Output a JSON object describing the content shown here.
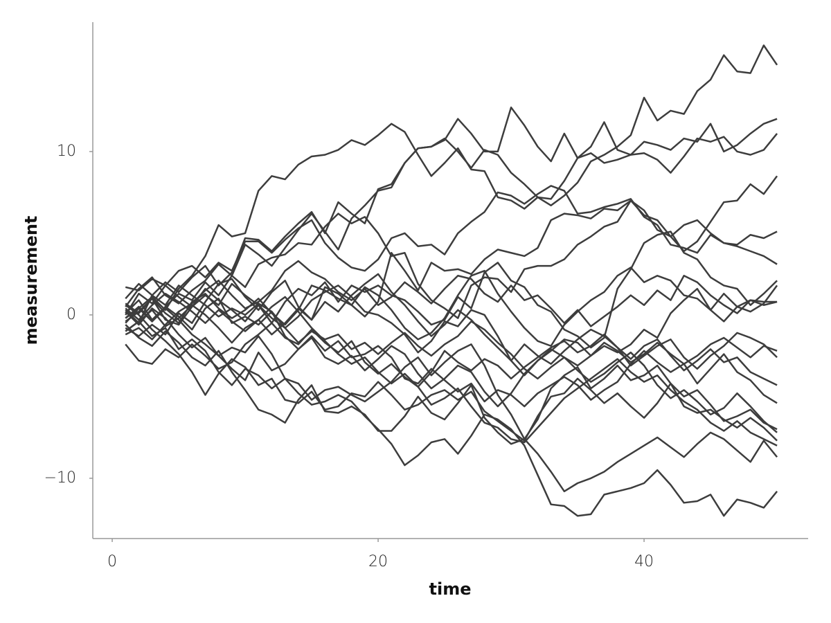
{
  "chart_data": {
    "type": "line",
    "x_label": "time",
    "y_label": "measurement",
    "color": "#3d3d3d",
    "xlim": [
      -1.46,
      52.34
    ],
    "ylim": [
      -13.69,
      17.92
    ],
    "xticks": [
      0,
      20,
      40
    ],
    "yticks": [
      {
        "value": -10,
        "label": "−10"
      },
      0,
      10
    ],
    "x": [
      1,
      2,
      3,
      4,
      5,
      6,
      7,
      8,
      9,
      10,
      11,
      12,
      13,
      14,
      15,
      16,
      17,
      18,
      19,
      20,
      21,
      22,
      23,
      24,
      25,
      26,
      27,
      28,
      29,
      30,
      31,
      32,
      33,
      34,
      35,
      36,
      37,
      38,
      39,
      40,
      41,
      42,
      43,
      44,
      45,
      46,
      47,
      48,
      49,
      50
    ],
    "series": [
      {
        "values": [
          0.3,
          -0.5,
          1.2,
          2.0,
          1.4,
          2.3,
          3.0,
          1.8,
          2.6,
          4.7,
          4.6,
          3.9,
          4.8,
          5.6,
          6.3,
          5.0,
          6.9,
          6.2,
          5.6,
          7.7,
          8.0,
          9.3,
          10.2,
          10.3,
          10.8,
          10.0,
          9.0,
          10.1,
          9.8,
          8.7,
          8.0,
          7.2,
          6.7,
          7.3,
          8.1,
          9.4,
          9.8,
          10.3,
          11.0,
          13.3,
          11.9,
          12.5,
          12.3,
          13.7,
          14.4,
          15.9,
          14.9,
          14.8,
          16.5,
          15.3
        ]
      },
      {
        "values": [
          -0.5,
          0.4,
          1.1,
          0.3,
          1.6,
          2.4,
          3.6,
          5.5,
          4.8,
          5.0,
          7.6,
          8.5,
          8.3,
          9.2,
          9.7,
          9.8,
          10.1,
          10.7,
          10.4,
          11.0,
          11.7,
          11.2,
          9.8,
          8.5,
          9.3,
          10.2,
          8.9,
          8.8,
          7.2,
          7.0,
          6.5,
          7.2,
          7.1,
          8.2,
          9.6,
          9.9,
          9.3,
          9.5,
          9.8,
          10.6,
          10.4,
          10.1,
          10.8,
          10.6,
          11.7,
          10.0,
          10.4,
          11.1,
          11.7,
          12.0
        ]
      },
      {
        "values": [
          0.1,
          0.9,
          -0.3,
          0.5,
          1.3,
          0.9,
          2.0,
          1.2,
          2.4,
          4.3,
          3.7,
          3.0,
          4.1,
          5.2,
          6.2,
          5.1,
          4.0,
          5.9,
          6.7,
          7.6,
          7.8,
          9.3,
          10.2,
          10.3,
          10.7,
          12.0,
          11.1,
          10.0,
          10.0,
          12.7,
          11.6,
          10.3,
          9.4,
          11.1,
          9.6,
          10.3,
          11.8,
          10.1,
          9.8,
          9.9,
          9.5,
          8.7,
          9.7,
          10.8,
          10.6,
          10.9,
          10.0,
          9.8,
          10.1,
          11.1
        ]
      },
      {
        "values": [
          -0.8,
          -1.3,
          -0.6,
          -1.2,
          0.1,
          -0.5,
          0.8,
          1.9,
          2.2,
          1.1,
          0.3,
          1.4,
          2.1,
          0.5,
          -0.3,
          1.7,
          1.3,
          0.6,
          -0.1,
          0.8,
          3.8,
          2.7,
          1.5,
          3.2,
          2.7,
          2.8,
          2.5,
          3.4,
          4.0,
          3.8,
          3.6,
          4.1,
          5.8,
          6.2,
          6.1,
          5.9,
          6.5,
          6.4,
          7.0,
          6.1,
          5.8,
          4.8,
          3.9,
          4.5,
          5.7,
          6.9,
          7.0,
          8.0,
          7.4,
          8.5
        ]
      },
      {
        "values": [
          1.7,
          1.5,
          2.2,
          1.8,
          2.7,
          3.0,
          2.3,
          3.2,
          2.7,
          4.5,
          4.5,
          3.8,
          4.6,
          5.3,
          5.8,
          4.4,
          3.5,
          2.9,
          2.7,
          3.4,
          4.7,
          5.0,
          4.2,
          4.3,
          3.7,
          5.0,
          5.7,
          6.3,
          7.5,
          7.3,
          6.8,
          7.4,
          7.9,
          7.6,
          6.2,
          6.3,
          6.6,
          6.8,
          7.1,
          6.0,
          5.5,
          4.3,
          4.1,
          3.8,
          4.9,
          4.4,
          4.3,
          4.9,
          4.7,
          5.1
        ]
      },
      {
        "values": [
          0.5,
          1.6,
          2.3,
          1.2,
          0.7,
          1.5,
          2.1,
          3.1,
          2.4,
          1.7,
          3.1,
          3.5,
          3.7,
          4.4,
          4.3,
          5.4,
          6.2,
          5.6,
          6.0,
          5.0,
          3.6,
          3.8,
          1.9,
          0.9,
          0.4,
          -0.2,
          1.8,
          2.3,
          2.2,
          1.4,
          2.8,
          3.0,
          3.0,
          3.4,
          4.3,
          4.8,
          5.4,
          5.7,
          7.0,
          6.4,
          5.2,
          4.8,
          5.5,
          5.8,
          5.0,
          4.4,
          4.2,
          3.9,
          3.6,
          3.1
        ]
      },
      {
        "values": [
          0.7,
          0.1,
          1.0,
          -0.3,
          -0.6,
          0.5,
          1.2,
          0.6,
          1.9,
          1.2,
          0.6,
          -0.5,
          0.8,
          1.6,
          1.2,
          2.0,
          0.8,
          1.8,
          1.4,
          1.8,
          1.2,
          0.9,
          0.2,
          -0.6,
          -0.3,
          1.1,
          0.4,
          2.6,
          3.2,
          2.1,
          1.7,
          0.6,
          0.2,
          -0.9,
          -1.3,
          -2.0,
          -1.4,
          1.6,
          2.8,
          4.4,
          4.9,
          5.1,
          3.8,
          3.4,
          2.3,
          1.8,
          1.6,
          0.6,
          1.3,
          2.1
        ]
      },
      {
        "values": [
          -0.2,
          0.4,
          -0.4,
          0.5,
          -0.1,
          -0.9,
          0.4,
          1.0,
          -0.5,
          -0.1,
          -0.6,
          0.2,
          -0.8,
          -0.1,
          0.9,
          1.4,
          1.8,
          1.1,
          0.2,
          0.0,
          -0.5,
          -1.2,
          -2.3,
          -1.6,
          -0.4,
          -0.7,
          0.3,
          0.0,
          -1.3,
          -2.8,
          -3.7,
          -2.8,
          -2.2,
          -1.5,
          -1.7,
          -2.5,
          -1.9,
          -2.3,
          -1.8,
          -0.9,
          -1.4,
          0.1,
          0.9,
          1.6,
          0.3,
          -0.4,
          0.5,
          0.2,
          0.7,
          1.8
        ]
      },
      {
        "values": [
          -0.4,
          0.2,
          1.0,
          0.1,
          -0.5,
          0.8,
          1.3,
          0.4,
          -0.2,
          0.3,
          1.0,
          0.1,
          -0.6,
          0.3,
          1.8,
          1.5,
          1.0,
          0.6,
          1.7,
          1.2,
          0.3,
          -0.8,
          -1.5,
          -1.1,
          -0.2,
          1.2,
          2.4,
          2.7,
          1.3,
          0.2,
          -0.8,
          -1.6,
          -1.9,
          -0.6,
          0.2,
          0.9,
          1.4,
          2.4,
          2.9,
          2.0,
          2.4,
          2.1,
          1.2,
          1.0,
          0.3,
          1.3,
          0.5,
          0.9,
          0.8,
          0.8
        ]
      },
      {
        "values": [
          -1.0,
          -0.4,
          0.3,
          -0.7,
          -0.2,
          0.6,
          0.0,
          -0.8,
          -1.7,
          -0.8,
          -0.3,
          -1.2,
          -0.5,
          0.4,
          -0.3,
          0.8,
          0.2,
          1.2,
          1.9,
          2.5,
          1.4,
          0.6,
          -0.4,
          -1.3,
          -0.6,
          0.3,
          -0.3,
          -1.2,
          -2.0,
          -2.8,
          -1.8,
          -2.5,
          -3.0,
          -2.2,
          -1.5,
          -0.9,
          -1.3,
          -2.0,
          -3.1,
          -2.5,
          -1.9,
          -1.5,
          -2.6,
          -3.3,
          -2.5,
          -1.9,
          -1.1,
          -1.4,
          -1.8,
          -2.6
        ]
      },
      {
        "values": [
          -1.8,
          -2.8,
          -3.0,
          -2.1,
          -2.6,
          -1.8,
          -2.5,
          -3.3,
          -2.9,
          -1.8,
          -1.2,
          -0.5,
          -1.4,
          -1.8,
          -0.9,
          -1.7,
          -2.3,
          -1.6,
          -2.9,
          -3.6,
          -3.0,
          -3.8,
          -4.4,
          -3.5,
          -2.2,
          -2.9,
          -3.4,
          -2.7,
          -3.1,
          -3.9,
          -3.2,
          -2.6,
          -2.0,
          -1.6,
          -2.3,
          -1.9,
          -1.2,
          -2.0,
          -2.7,
          -1.9,
          -1.5,
          -2.5,
          -3.4,
          -2.8,
          -2.1,
          -2.9,
          -2.6,
          -3.5,
          -3.9,
          -4.3
        ]
      },
      {
        "values": [
          0.2,
          -0.6,
          0.4,
          -0.2,
          -1.2,
          -2.0,
          -1.4,
          -2.5,
          -3.3,
          -4.0,
          -2.3,
          -3.4,
          -3.0,
          -2.1,
          -1.3,
          -2.2,
          -1.6,
          -2.6,
          -2.4,
          -1.9,
          -2.6,
          -3.9,
          -4.2,
          -3.3,
          -4.0,
          -4.7,
          -4.2,
          -5.3,
          -4.6,
          -4.9,
          -5.6,
          -4.8,
          -4.3,
          -3.8,
          -4.3,
          -5.2,
          -4.6,
          -4.1,
          -3.0,
          -2.2,
          -2.9,
          -3.5,
          -3.0,
          -4.2,
          -3.3,
          -2.4,
          -3.5,
          -4.0,
          -4.9,
          -5.4
        ]
      },
      {
        "values": [
          0.6,
          0.0,
          -0.9,
          -1.6,
          -2.4,
          -3.5,
          -4.9,
          -3.6,
          -2.7,
          -3.2,
          -4.3,
          -3.9,
          -5.2,
          -5.4,
          -4.7,
          -5.8,
          -5.6,
          -4.8,
          -5.0,
          -4.1,
          -4.9,
          -5.8,
          -5.5,
          -4.9,
          -4.6,
          -5.2,
          -4.7,
          -5.9,
          -6.5,
          -7.1,
          -7.7,
          -6.2,
          -5.0,
          -4.8,
          -3.9,
          -4.6,
          -5.4,
          -4.8,
          -5.6,
          -6.3,
          -5.4,
          -4.2,
          -5.0,
          -4.6,
          -5.5,
          -6.5,
          -6.2,
          -5.8,
          -6.6,
          -7.0
        ]
      },
      {
        "values": [
          -0.6,
          -1.4,
          -1.9,
          -1.0,
          -1.7,
          -2.6,
          -3.1,
          -2.2,
          -3.5,
          -4.6,
          -5.8,
          -6.1,
          -6.6,
          -5.2,
          -4.3,
          -5.9,
          -6.0,
          -5.6,
          -6.1,
          -7.1,
          -7.1,
          -6.2,
          -5.0,
          -6.0,
          -6.4,
          -5.4,
          -4.3,
          -6.3,
          -7.2,
          -7.9,
          -7.6,
          -6.4,
          -4.5,
          -3.7,
          -3.2,
          -4.5,
          -3.9,
          -3.1,
          -4.0,
          -3.7,
          -3.1,
          -4.2,
          -5.6,
          -6.0,
          -5.8,
          -6.4,
          -6.9,
          -6.3,
          -6.9,
          -7.7
        ]
      },
      {
        "values": [
          -0.2,
          0.5,
          -0.4,
          0.4,
          -0.3,
          -1.2,
          -1.8,
          -2.5,
          -2.0,
          -2.3,
          -1.3,
          -2.4,
          -3.9,
          -4.2,
          -5.2,
          -4.6,
          -4.4,
          -4.9,
          -5.3,
          -4.7,
          -4.1,
          -3.2,
          -2.6,
          -3.7,
          -2.9,
          -2.2,
          -1.8,
          -3.1,
          -4.9,
          -6.1,
          -7.6,
          -8.5,
          -9.6,
          -10.8,
          -10.3,
          -10.0,
          -9.6,
          -9.0,
          -8.5,
          -8.0,
          -7.5,
          -8.1,
          -8.7,
          -7.9,
          -7.2,
          -7.6,
          -8.3,
          -9.0,
          -7.7,
          -8.7
        ]
      },
      {
        "values": [
          -1.0,
          -0.4,
          -1.3,
          -0.8,
          -2.1,
          -1.5,
          -2.2,
          -3.5,
          -4.3,
          -3.3,
          -3.7,
          -4.5,
          -3.9,
          -4.8,
          -5.5,
          -5.3,
          -4.9,
          -5.3,
          -6.2,
          -7.0,
          -7.9,
          -9.2,
          -8.6,
          -7.8,
          -7.6,
          -8.5,
          -7.4,
          -6.1,
          -6.4,
          -7.0,
          -8.0,
          -9.8,
          -11.6,
          -11.7,
          -12.3,
          -12.2,
          -11.0,
          -10.8,
          -10.6,
          -10.3,
          -9.5,
          -10.4,
          -11.5,
          -11.4,
          -11.0,
          -12.3,
          -11.3,
          -11.5,
          -11.8,
          -10.8
        ]
      },
      {
        "values": [
          1.0,
          1.9,
          1.2,
          0.6,
          1.8,
          1.2,
          0.6,
          -0.1,
          0.4,
          0.0,
          0.7,
          0.2,
          -1.3,
          -2.1,
          -1.4,
          -2.6,
          -3.0,
          -2.5,
          -3.4,
          -2.7,
          -1.9,
          -2.4,
          -3.6,
          -4.5,
          -3.9,
          -3.1,
          -3.5,
          -4.7,
          -5.6,
          -4.8,
          -3.6,
          -2.8,
          -2.1,
          -2.6,
          -3.4,
          -4.1,
          -3.6,
          -2.9,
          -2.3,
          -3.1,
          -4.3,
          -5.1,
          -4.6,
          -5.3,
          -6.1,
          -5.7,
          -4.8,
          -5.6,
          -6.5,
          -7.2
        ]
      },
      {
        "values": [
          0.4,
          -0.3,
          0.6,
          1.3,
          0.8,
          0.2,
          -0.5,
          0.3,
          -0.4,
          -1.0,
          -0.3,
          0.5,
          1.1,
          0.2,
          -0.8,
          -1.6,
          -2.4,
          -3.0,
          -2.6,
          -3.5,
          -4.2,
          -3.6,
          -4.4,
          -5.5,
          -5.1,
          -4.5,
          -5.6,
          -6.6,
          -6.9,
          -7.6,
          -7.8,
          -6.9,
          -6.0,
          -5.1,
          -4.5,
          -3.9,
          -3.3,
          -2.7,
          -3.5,
          -4.1,
          -3.7,
          -4.6,
          -5.3,
          -5.8,
          -6.6,
          -7.1,
          -6.5,
          -7.2,
          -7.6,
          -8.0
        ]
      },
      {
        "values": [
          -1.2,
          -0.8,
          -1.5,
          -0.6,
          0.2,
          0.7,
          1.5,
          2.1,
          1.2,
          0.4,
          0.8,
          1.5,
          2.7,
          3.3,
          2.6,
          2.2,
          1.4,
          0.9,
          1.6,
          0.6,
          1.1,
          2.0,
          1.4,
          0.7,
          1.6,
          2.4,
          2.2,
          1.3,
          0.8,
          1.8,
          0.9,
          1.2,
          0.4,
          -0.5,
          0.3,
          -0.7,
          -0.1,
          0.5,
          1.2,
          0.6,
          1.5,
          0.9,
          2.4,
          2.0,
          1.2,
          0.6,
          0.1,
          0.9,
          0.6,
          0.8
        ]
      },
      {
        "values": [
          0.0,
          1.3,
          0.7,
          1.8,
          1.1,
          0.5,
          1.6,
          0.9,
          0.3,
          -0.4,
          0.6,
          -0.2,
          -0.8,
          -1.7,
          -1.0,
          -1.5,
          -1.2,
          -2.1,
          -1.7,
          -2.4,
          -1.7,
          -1.1,
          -1.9,
          -2.5,
          -1.8,
          -1.3,
          -0.4,
          -0.9,
          -1.7,
          -2.4,
          -3.3,
          -3.9,
          -3.2,
          -2.6,
          -3.1,
          -2.5,
          -1.7,
          -2.2,
          -2.9,
          -2.4,
          -1.7,
          -2.4,
          -3.0,
          -2.5,
          -1.8,
          -1.4,
          -2.0,
          -2.6,
          -1.9,
          -2.2
        ]
      }
    ]
  }
}
